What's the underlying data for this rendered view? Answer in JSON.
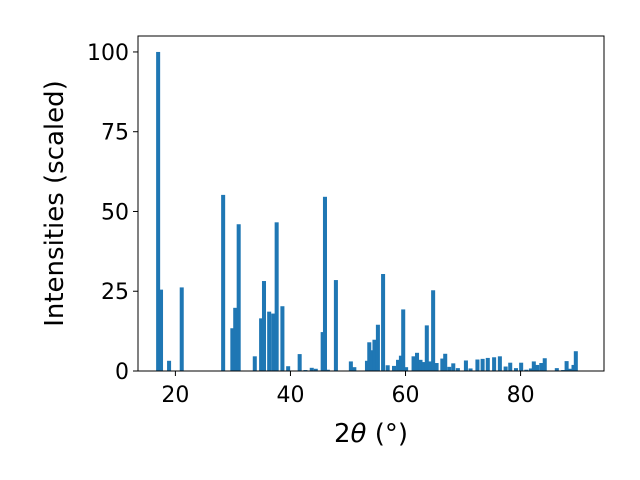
{
  "chart_data": {
    "type": "bar",
    "title": "",
    "xlabel_prefix": "2",
    "xlabel_theta": "θ",
    "xlabel_unit": " (°)",
    "ylabel": "Intensities (scaled)",
    "xlim": [
      13.5,
      94.5
    ],
    "ylim": [
      0,
      105
    ],
    "xticks": [
      20,
      40,
      60,
      80
    ],
    "yticks": [
      0,
      25,
      50,
      75,
      100
    ],
    "bar_color": "#1f77b4",
    "bar_width": 0.7,
    "grid": false,
    "legend": "none",
    "x": [
      17.0,
      17.5,
      18.9,
      21.1,
      28.3,
      29.9,
      30.4,
      31.0,
      33.8,
      34.9,
      35.4,
      36.3,
      37.0,
      37.6,
      38.6,
      39.6,
      41.6,
      42.6,
      43.7,
      44.4,
      45.6,
      46.0,
      46.5,
      47.9,
      50.5,
      51.1,
      53.3,
      53.7,
      54.1,
      54.6,
      55.2,
      56.1,
      56.9,
      58.0,
      58.7,
      59.2,
      59.6,
      60.1,
      61.4,
      62.0,
      62.6,
      63.2,
      63.7,
      64.3,
      64.8,
      65.4,
      66.4,
      66.9,
      67.6,
      68.3,
      69.1,
      70.5,
      71.3,
      72.5,
      73.4,
      74.3,
      75.4,
      76.4,
      77.4,
      78.2,
      79.2,
      80.1,
      81.0,
      81.8,
      82.3,
      82.9,
      83.6,
      84.2,
      86.3,
      87.4,
      88.0,
      88.6,
      89.2,
      89.6
    ],
    "values": [
      100.0,
      25.5,
      3.2,
      26.2,
      55.2,
      13.4,
      19.8,
      46.0,
      4.6,
      16.5,
      28.2,
      18.6,
      18.0,
      46.6,
      20.3,
      1.5,
      5.3,
      0.3,
      1.0,
      0.7,
      12.2,
      54.6,
      0.4,
      28.5,
      3.0,
      1.2,
      3.2,
      9.0,
      6.5,
      9.8,
      14.5,
      30.4,
      1.8,
      1.6,
      3.5,
      4.8,
      19.3,
      1.2,
      4.6,
      5.7,
      3.5,
      2.8,
      14.3,
      3.0,
      25.3,
      2.5,
      3.9,
      5.4,
      1.3,
      2.4,
      0.9,
      3.3,
      0.8,
      3.6,
      3.8,
      4.1,
      4.3,
      4.6,
      1.4,
      2.6,
      0.9,
      2.6,
      0.4,
      0.8,
      3.0,
      1.9,
      2.5,
      4.0,
      0.9,
      0.3,
      3.1,
      0.7,
      1.9,
      6.2
    ]
  }
}
